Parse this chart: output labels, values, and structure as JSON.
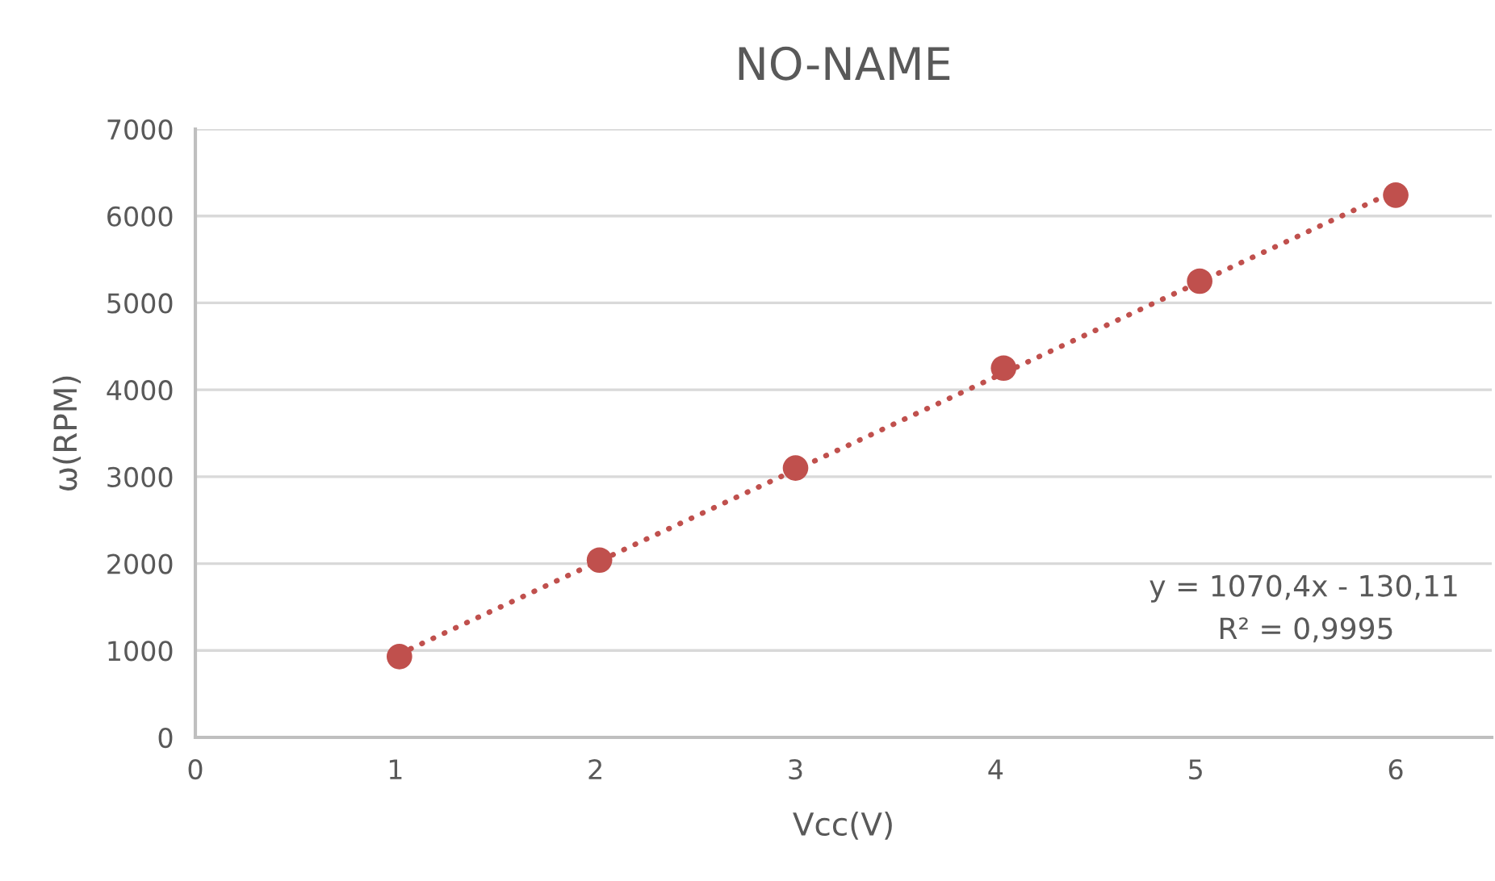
{
  "chart_data": {
    "type": "scatter",
    "title": "NO-NAME",
    "xlabel": "Vcc(V)",
    "ylabel": "ω(RPM)",
    "x": [
      1.02,
      2.02,
      3.0,
      4.04,
      5.02,
      6.0
    ],
    "series": [
      {
        "color": "#c0504d",
        "values": [
          930,
          2040,
          3100,
          4250,
          5250,
          6240
        ],
        "marker": "circle"
      },
      {
        "type": "line",
        "color": "#c0504d",
        "x": [
          1.02,
          6.0
        ],
        "values": [
          960,
          6290
        ],
        "line_style": "dotted",
        "marker": "none"
      }
    ],
    "xlim": [
      0,
      6.48
    ],
    "xticks": [
      0,
      1,
      2,
      3,
      4,
      5,
      6
    ],
    "ylim": [
      0,
      7000
    ],
    "yticks": [
      0,
      1000,
      2000,
      3000,
      4000,
      5000,
      6000,
      7000
    ],
    "grid": "y",
    "legend": false,
    "annotations": [
      "y = 1070,4x - 130,11",
      "R² = 0,9995"
    ]
  }
}
